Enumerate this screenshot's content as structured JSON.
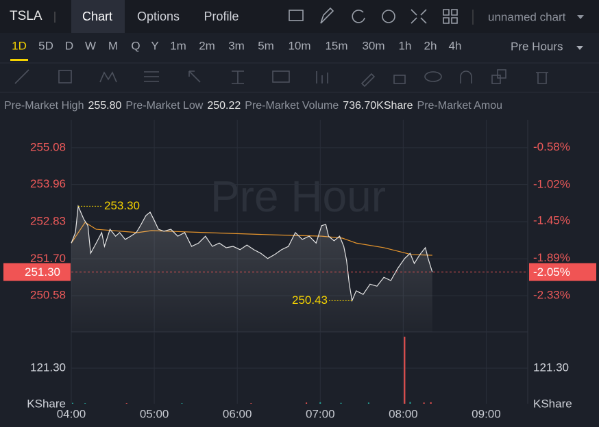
{
  "header": {
    "symbol": "TSLA",
    "tabs": [
      "Chart",
      "Options",
      "Profile"
    ],
    "chart_name": "unnamed chart",
    "timeframes": [
      "1D",
      "5D",
      "D",
      "W",
      "M",
      "Q",
      "Y",
      "1m",
      "2m",
      "3m",
      "5m",
      "10m",
      "15m",
      "30m",
      "1h",
      "2h",
      "4h"
    ],
    "session": "Pre Hours"
  },
  "stats": [
    {
      "label": "Pre-Market High",
      "value": "255.80"
    },
    {
      "label": "Pre-Market Low",
      "value": "250.22"
    },
    {
      "label": "Pre-Market Volume",
      "value": "736.70KShare"
    },
    {
      "label": "Pre-Market Amou",
      "value": ""
    }
  ],
  "chart_data": {
    "type": "line",
    "watermark": "Pre Hour",
    "x": [
      "04:00",
      "04:03",
      "04:05",
      "04:09",
      "04:12",
      "04:14",
      "04:18",
      "04:22",
      "04:24",
      "04:28",
      "04:32",
      "04:35",
      "04:39",
      "04:43",
      "04:47",
      "04:50",
      "04:54",
      "04:57",
      "05:00",
      "05:03",
      "05:07",
      "05:12",
      "05:17",
      "05:22",
      "05:27",
      "05:32",
      "05:37",
      "05:42",
      "05:47",
      "05:52",
      "05:57",
      "06:02",
      "06:07",
      "06:12",
      "06:17",
      "06:22",
      "06:27",
      "06:32",
      "06:37",
      "06:42",
      "06:47",
      "06:52",
      "06:57",
      "07:01",
      "07:04",
      "07:06",
      "07:10",
      "07:14",
      "07:17",
      "07:19",
      "07:21",
      "07:23",
      "07:26",
      "07:31",
      "07:36",
      "07:41",
      "07:46",
      "07:51",
      "07:56",
      "08:01",
      "08:05",
      "08:08",
      "08:12",
      "08:16",
      "08:18",
      "08:21"
    ],
    "series": [
      {
        "name": "Price",
        "color": "#e6e6e6",
        "values": [
          252.18,
          252.5,
          253.3,
          252.91,
          252.71,
          251.87,
          252.18,
          252.5,
          252.08,
          252.6,
          252.39,
          252.5,
          252.29,
          252.39,
          252.5,
          252.71,
          253.02,
          253.12,
          252.87,
          252.6,
          252.54,
          252.6,
          252.39,
          252.5,
          252.08,
          252.18,
          252.39,
          252.08,
          252.18,
          252.04,
          252.08,
          251.98,
          252.12,
          251.98,
          251.87,
          251.71,
          251.83,
          251.98,
          252.08,
          252.5,
          252.29,
          252.39,
          252.18,
          252.71,
          252.75,
          252.39,
          252.25,
          252.39,
          252.08,
          251.66,
          250.93,
          250.43,
          250.73,
          250.62,
          250.93,
          250.87,
          251.14,
          251.04,
          251.41,
          251.71,
          251.87,
          251.56,
          251.83,
          252.04,
          251.71,
          251.3
        ]
      }
    ],
    "average": {
      "color": "#e8962c",
      "x": [
        "04:00",
        "04:10",
        "04:18",
        "04:48",
        "04:58",
        "05:37",
        "06:27",
        "07:01",
        "07:16",
        "07:26",
        "07:46",
        "08:06",
        "08:21"
      ],
      "values": [
        252.18,
        252.81,
        252.6,
        252.5,
        252.56,
        252.5,
        252.43,
        252.39,
        252.33,
        252.18,
        252.04,
        251.83,
        251.81
      ]
    },
    "xlim": [
      "04:00",
      "09:30"
    ],
    "xticks": [
      "04:00",
      "05:00",
      "06:00",
      "07:00",
      "08:00",
      "09:00"
    ],
    "ylim": [
      249.48,
      255.93
    ],
    "yticks": [
      255.08,
      253.96,
      252.83,
      {
        "value": 251.7,
        "label": "251.70"
      },
      250.58
    ],
    "y2lim": [
      -2.76,
      -0.25
    ],
    "y2ticks": [
      {
        "value": -0.58,
        "label": "-0.58%"
      },
      {
        "value": -1.02,
        "label": "-1.02%"
      },
      {
        "value": -1.45,
        "label": "-1.45%"
      },
      {
        "value": -1.89,
        "label": "-1.89%"
      },
      {
        "value": -2.33,
        "label": "-2.33%"
      }
    ],
    "current": {
      "value": 251.3,
      "label": "251.30",
      "change": {
        "value": -2.05,
        "label": "-2.05%"
      }
    },
    "high": {
      "value": 253.3,
      "label": "253.30",
      "index": 2
    },
    "low": {
      "value": 250.43,
      "label": "250.43",
      "index": 51
    },
    "grid": true,
    "volume": {
      "unit": "KShare",
      "x": [
        "04:01",
        "04:10",
        "04:40",
        "05:20",
        "06:10",
        "06:50",
        "07:00",
        "07:15",
        "07:35",
        "08:01",
        "08:05",
        "08:15",
        "08:20"
      ],
      "values": [
        3,
        2,
        2,
        2,
        2,
        4,
        5,
        3,
        4,
        228.6,
        6,
        4,
        5
      ],
      "colors": [
        "#26a69a",
        "#26a69a",
        "#ef5350",
        "#26a69a",
        "#ef5350",
        "#ef5350",
        "#26a69a",
        "#26a69a",
        "#26a69a",
        "#ef5350",
        "#26a69a",
        "#ef5350",
        "#ef5350"
      ],
      "ylim": [
        0,
        245
      ],
      "yticks": [
        {
          "value": 121.3,
          "label": "121.30"
        }
      ]
    }
  }
}
